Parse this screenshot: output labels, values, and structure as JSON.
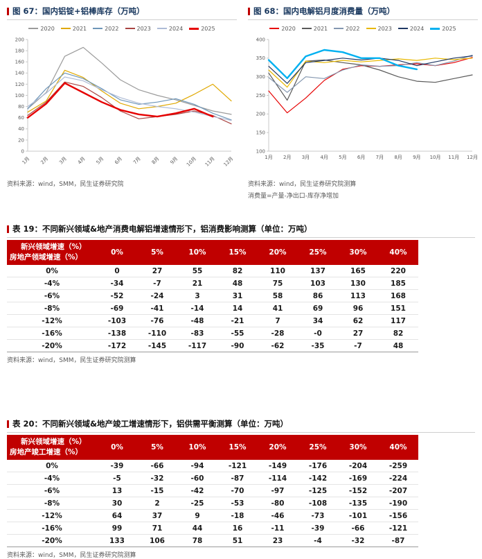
{
  "colors": {
    "accent_red": "#C00000",
    "negative_value": "#E60000",
    "figure_title": "#17365D",
    "source_text": "#595959"
  },
  "figures": [
    {
      "title": "图 67：国内铝锭+铝棒库存（万吨）",
      "source": "资料来源：wind，SMM，民生证券研究院"
    },
    {
      "title": "图 68：国内电解铝月度消费量（万吨）",
      "source": "资料来源：wind，民生证券研究院测算",
      "note": "消费量=产量-净出口-库存净增加"
    }
  ],
  "chart_data": [
    {
      "type": "line",
      "title": "国内铝锭+铝棒库存（万吨）",
      "x": [
        "1月",
        "2月",
        "3月",
        "4月",
        "5月",
        "6月",
        "7月",
        "8月",
        "9月",
        "10月",
        "11月",
        "12月"
      ],
      "ylim": [
        0,
        200
      ],
      "yticks": [
        0,
        20,
        40,
        60,
        80,
        100,
        120,
        140,
        160,
        180,
        200
      ],
      "grid": false,
      "legend_position": "top",
      "x_tick_rotate": true,
      "series": [
        {
          "name": "2020",
          "color": "#9B9B9B",
          "width": 1.2,
          "values": [
            76,
            105,
            170,
            186,
            158,
            128,
            110,
            100,
            92,
            82,
            72,
            66
          ]
        },
        {
          "name": "2021",
          "color": "#E0A800",
          "width": 1.2,
          "values": [
            70,
            90,
            145,
            132,
            108,
            86,
            76,
            80,
            86,
            102,
            120,
            90
          ]
        },
        {
          "name": "2022",
          "color": "#6E96B8",
          "width": 1.2,
          "values": [
            76,
            112,
            140,
            130,
            112,
            92,
            84,
            88,
            94,
            84,
            68,
            56
          ]
        },
        {
          "name": "2023",
          "color": "#A94442",
          "width": 1.2,
          "values": [
            64,
            88,
            124,
            116,
            96,
            72,
            58,
            62,
            66,
            72,
            64,
            49
          ]
        },
        {
          "name": "2024",
          "color": "#AEBBD6",
          "width": 1.2,
          "values": [
            80,
            104,
            133,
            126,
            110,
            96,
            86,
            80,
            76,
            70,
            62,
            55
          ]
        },
        {
          "name": "2025",
          "color": "#E60000",
          "width": 2.4,
          "values": [
            60,
            85,
            122,
            105,
            88,
            74,
            66,
            62,
            68,
            76,
            62,
            null
          ]
        }
      ]
    },
    {
      "type": "line",
      "title": "国内电解铝月度消费量（万吨）",
      "x": [
        "1月",
        "2月",
        "3月",
        "4月",
        "5月",
        "6月",
        "7月",
        "8月",
        "9月",
        "10月",
        "11月",
        "12月"
      ],
      "ylim": [
        100,
        400
      ],
      "yticks": [
        100,
        150,
        200,
        250,
        300,
        350,
        400
      ],
      "grid": false,
      "legend_position": "top",
      "x_tick_rotate": false,
      "series": [
        {
          "name": "2020",
          "color": "#E60000",
          "width": 1.2,
          "values": [
            262,
            203,
            243,
            290,
            320,
            330,
            328,
            332,
            335,
            330,
            338,
            352
          ]
        },
        {
          "name": "2021",
          "color": "#595959",
          "width": 1.2,
          "values": [
            310,
            237,
            342,
            345,
            338,
            332,
            318,
            300,
            288,
            285,
            295,
            305
          ]
        },
        {
          "name": "2022",
          "color": "#8497B0",
          "width": 1.2,
          "values": [
            298,
            258,
            300,
            295,
            318,
            332,
            328,
            330,
            338,
            330,
            342,
            358
          ]
        },
        {
          "name": "2023",
          "color": "#E8B800",
          "width": 1.2,
          "values": [
            318,
            272,
            342,
            338,
            344,
            340,
            344,
            348,
            344,
            350,
            346,
            350
          ]
        },
        {
          "name": "2024",
          "color": "#203864",
          "width": 1.2,
          "values": [
            328,
            282,
            338,
            344,
            350,
            345,
            350,
            344,
            330,
            340,
            350,
            356
          ]
        },
        {
          "name": "2025",
          "color": "#00B0F0",
          "width": 2.4,
          "values": [
            345,
            296,
            355,
            372,
            366,
            350,
            350,
            330,
            320,
            null,
            null,
            null
          ]
        }
      ]
    }
  ],
  "tables": [
    {
      "title": "表 19：不同新兴领域&地产消费电解铝增速情形下，铝消费影响测算（单位：万吨）",
      "header_top": "新兴领域增速（%）",
      "header_left": "房地产领域增速（%）",
      "col_headers": [
        "0%",
        "5%",
        "10%",
        "15%",
        "20%",
        "25%",
        "30%",
        "40%"
      ],
      "rows": [
        {
          "label": "0%",
          "values": [
            0,
            27,
            55,
            82,
            110,
            137,
            165,
            220
          ]
        },
        {
          "label": "-4%",
          "values": [
            -34,
            -7,
            21,
            48,
            75,
            103,
            130,
            185
          ]
        },
        {
          "label": "-6%",
          "values": [
            -52,
            -24,
            3,
            31,
            58,
            86,
            113,
            168
          ]
        },
        {
          "label": "-8%",
          "values": [
            -69,
            -41,
            -14,
            14,
            41,
            69,
            96,
            151
          ]
        },
        {
          "label": "-12%",
          "values": [
            -103,
            -76,
            -48,
            -21,
            7,
            34,
            62,
            117
          ]
        },
        {
          "label": "-16%",
          "values": [
            -138,
            -110,
            -83,
            -55,
            -28,
            "-0",
            27,
            82
          ]
        },
        {
          "label": "-20%",
          "values": [
            -172,
            -145,
            -117,
            -90,
            -62,
            -35,
            -7,
            48
          ]
        }
      ],
      "source": "资料来源：wind，SMM，民生证券研究院测算"
    },
    {
      "title": "表 20：不同新兴领域&地产竣工增速情形下，铝供需平衡测算（单位：万吨）",
      "header_top": "新兴领域增速（%）",
      "header_left": "房地产竣工增速（%）",
      "col_headers": [
        "0%",
        "5%",
        "10%",
        "15%",
        "20%",
        "25%",
        "30%",
        "40%"
      ],
      "rows": [
        {
          "label": "0%",
          "values": [
            -39,
            -66,
            -94,
            -121,
            -149,
            -176,
            -204,
            -259
          ]
        },
        {
          "label": "-4%",
          "values": [
            -5,
            -32,
            -60,
            -87,
            -114,
            -142,
            -169,
            -224
          ]
        },
        {
          "label": "-6%",
          "values": [
            13,
            -15,
            -42,
            -70,
            -97,
            -125,
            -152,
            -207
          ]
        },
        {
          "label": "-8%",
          "values": [
            30,
            2,
            -25,
            -53,
            -80,
            -108,
            -135,
            -190
          ]
        },
        {
          "label": "-12%",
          "values": [
            64,
            37,
            9,
            -18,
            -46,
            -73,
            -101,
            -156
          ]
        },
        {
          "label": "-16%",
          "values": [
            99,
            71,
            44,
            16,
            -11,
            -39,
            -66,
            -121
          ]
        },
        {
          "label": "-20%",
          "values": [
            133,
            106,
            78,
            51,
            23,
            -4,
            -32,
            -87
          ]
        }
      ],
      "source": "资料来源：wind，SMM，民生证券研究院测算"
    }
  ]
}
